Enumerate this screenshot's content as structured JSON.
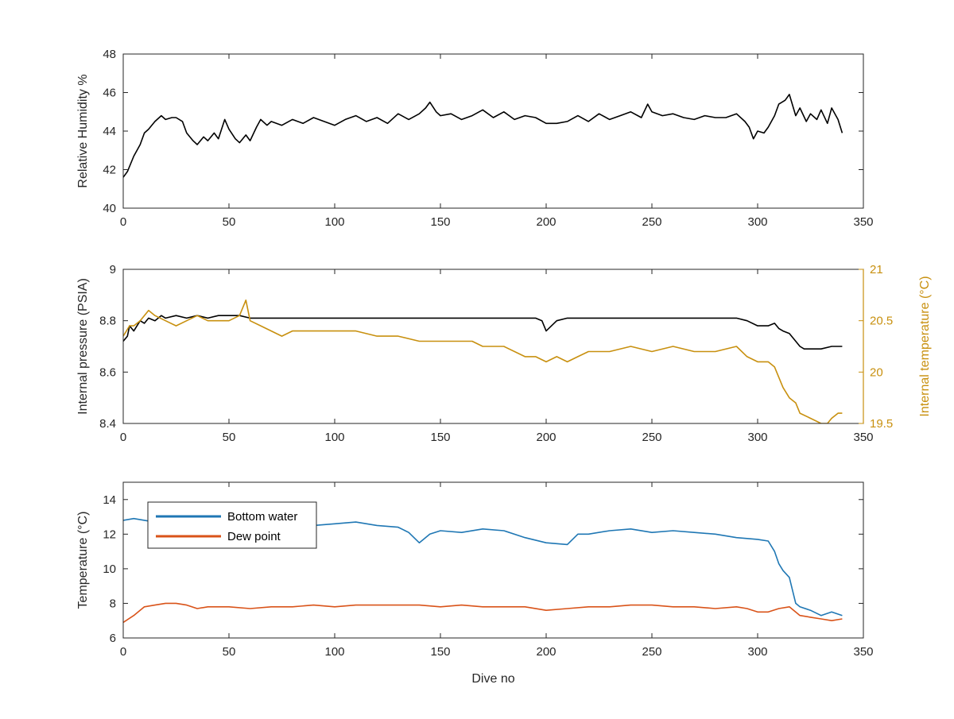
{
  "chart_data": [
    {
      "type": "line",
      "ylabel": "Relative Humidity %",
      "xlabel": "",
      "xlim": [
        0,
        350
      ],
      "ylim": [
        40,
        48
      ],
      "xticks": [
        0,
        50,
        100,
        150,
        200,
        250,
        300,
        350
      ],
      "yticks": [
        40,
        42,
        44,
        46,
        48
      ],
      "grid": false,
      "series": [
        {
          "color": "#000000",
          "x": [
            0,
            2,
            5,
            8,
            10,
            12,
            15,
            18,
            20,
            23,
            25,
            28,
            30,
            33,
            35,
            38,
            40,
            43,
            45,
            48,
            50,
            53,
            55,
            58,
            60,
            63,
            65,
            68,
            70,
            75,
            80,
            85,
            90,
            95,
            100,
            105,
            110,
            115,
            120,
            125,
            130,
            135,
            140,
            143,
            145,
            148,
            150,
            155,
            160,
            165,
            170,
            175,
            180,
            185,
            190,
            195,
            200,
            205,
            210,
            215,
            220,
            225,
            230,
            235,
            240,
            245,
            248,
            250,
            255,
            260,
            265,
            270,
            275,
            280,
            285,
            290,
            294,
            296,
            298,
            300,
            303,
            305,
            308,
            310,
            313,
            315,
            318,
            320,
            323,
            325,
            328,
            330,
            333,
            335,
            338,
            340
          ],
          "y": [
            41.6,
            41.9,
            42.7,
            43.3,
            43.9,
            44.1,
            44.5,
            44.8,
            44.6,
            44.7,
            44.7,
            44.5,
            43.9,
            43.5,
            43.3,
            43.7,
            43.5,
            43.9,
            43.6,
            44.6,
            44.1,
            43.6,
            43.4,
            43.8,
            43.5,
            44.2,
            44.6,
            44.3,
            44.5,
            44.3,
            44.6,
            44.4,
            44.7,
            44.5,
            44.3,
            44.6,
            44.8,
            44.5,
            44.7,
            44.4,
            44.9,
            44.6,
            44.9,
            45.2,
            45.5,
            45.0,
            44.8,
            44.9,
            44.6,
            44.8,
            45.1,
            44.7,
            45.0,
            44.6,
            44.8,
            44.7,
            44.4,
            44.4,
            44.5,
            44.8,
            44.5,
            44.9,
            44.6,
            44.8,
            45.0,
            44.7,
            45.4,
            45.0,
            44.8,
            44.9,
            44.7,
            44.6,
            44.8,
            44.7,
            44.7,
            44.9,
            44.5,
            44.2,
            43.6,
            44.0,
            43.9,
            44.2,
            44.8,
            45.4,
            45.6,
            45.9,
            44.8,
            45.2,
            44.5,
            44.9,
            44.6,
            45.1,
            44.4,
            45.2,
            44.6,
            43.9
          ]
        }
      ]
    },
    {
      "type": "line",
      "ylabel": "Internal pressure (PSIA)",
      "y2label": "Internal temperature (°C)",
      "xlabel": "",
      "xlim": [
        0,
        350
      ],
      "ylim": [
        8.4,
        9.0
      ],
      "y2lim": [
        19.5,
        21
      ],
      "xticks": [
        0,
        50,
        100,
        150,
        200,
        250,
        300,
        350
      ],
      "yticks": [
        8.4,
        8.6,
        8.8,
        9.0
      ],
      "ytick_labels": [
        "8.4",
        "8.6",
        "8.8",
        "9"
      ],
      "y2ticks": [
        19.5,
        20,
        20.5,
        21
      ],
      "y2tick_labels": [
        "19.5",
        "20",
        "20.5",
        "21"
      ],
      "grid": false,
      "series": [
        {
          "axis": "left",
          "color": "#000000",
          "x": [
            0,
            2,
            3,
            5,
            8,
            10,
            12,
            15,
            18,
            20,
            25,
            30,
            35,
            40,
            45,
            50,
            55,
            60,
            70,
            80,
            90,
            100,
            110,
            120,
            130,
            140,
            150,
            160,
            170,
            180,
            190,
            195,
            198,
            200,
            205,
            210,
            215,
            220,
            230,
            240,
            250,
            260,
            270,
            280,
            290,
            295,
            300,
            305,
            308,
            310,
            312,
            315,
            318,
            320,
            322,
            325,
            330,
            335,
            340
          ],
          "y": [
            8.72,
            8.74,
            8.78,
            8.76,
            8.8,
            8.79,
            8.81,
            8.8,
            8.82,
            8.81,
            8.82,
            8.81,
            8.82,
            8.81,
            8.82,
            8.82,
            8.82,
            8.81,
            8.81,
            8.81,
            8.81,
            8.81,
            8.81,
            8.81,
            8.81,
            8.81,
            8.81,
            8.81,
            8.81,
            8.81,
            8.81,
            8.81,
            8.8,
            8.76,
            8.8,
            8.81,
            8.81,
            8.81,
            8.81,
            8.81,
            8.81,
            8.81,
            8.81,
            8.81,
            8.81,
            8.8,
            8.78,
            8.78,
            8.79,
            8.77,
            8.76,
            8.75,
            8.72,
            8.7,
            8.69,
            8.69,
            8.69,
            8.7,
            8.7
          ]
        },
        {
          "axis": "right",
          "color": "#c8900f",
          "x": [
            0,
            3,
            5,
            8,
            10,
            12,
            15,
            20,
            25,
            30,
            35,
            40,
            45,
            50,
            55,
            58,
            60,
            65,
            70,
            75,
            80,
            90,
            100,
            110,
            120,
            130,
            140,
            150,
            160,
            165,
            170,
            180,
            190,
            195,
            200,
            205,
            210,
            215,
            220,
            230,
            240,
            250,
            260,
            270,
            280,
            290,
            295,
            300,
            305,
            308,
            310,
            312,
            315,
            318,
            320,
            325,
            330,
            333,
            335,
            338,
            340
          ],
          "y": [
            20.35,
            20.45,
            20.45,
            20.5,
            20.55,
            20.6,
            20.55,
            20.5,
            20.45,
            20.5,
            20.55,
            20.5,
            20.5,
            20.5,
            20.55,
            20.7,
            20.5,
            20.45,
            20.4,
            20.35,
            20.4,
            20.4,
            20.4,
            20.4,
            20.35,
            20.35,
            20.3,
            20.3,
            20.3,
            20.3,
            20.25,
            20.25,
            20.15,
            20.15,
            20.1,
            20.15,
            20.1,
            20.15,
            20.2,
            20.2,
            20.25,
            20.2,
            20.25,
            20.2,
            20.2,
            20.25,
            20.15,
            20.1,
            20.1,
            20.05,
            19.95,
            19.85,
            19.75,
            19.7,
            19.6,
            19.55,
            19.5,
            19.5,
            19.55,
            19.6,
            19.6
          ]
        }
      ]
    },
    {
      "type": "line",
      "ylabel": "Temperature (°C)",
      "xlabel": "Dive no",
      "xlim": [
        0,
        350
      ],
      "ylim": [
        6,
        15
      ],
      "xticks": [
        0,
        50,
        100,
        150,
        200,
        250,
        300,
        350
      ],
      "yticks": [
        6,
        8,
        10,
        12,
        14
      ],
      "grid": false,
      "legend": "top-left",
      "series": [
        {
          "name": "Bottom water",
          "color": "#1f77b4",
          "x": [
            0,
            5,
            10,
            20,
            30,
            40,
            50,
            60,
            70,
            80,
            90,
            100,
            110,
            120,
            130,
            135,
            140,
            145,
            150,
            160,
            170,
            180,
            190,
            200,
            210,
            215,
            220,
            230,
            240,
            250,
            260,
            270,
            280,
            290,
            300,
            305,
            308,
            310,
            312,
            315,
            318,
            320,
            325,
            330,
            335,
            340
          ],
          "y": [
            12.8,
            12.9,
            12.8,
            12.6,
            12.7,
            12.5,
            12.6,
            12.4,
            12.5,
            12.4,
            12.5,
            12.6,
            12.7,
            12.5,
            12.4,
            12.1,
            11.5,
            12.0,
            12.2,
            12.1,
            12.3,
            12.2,
            11.8,
            11.5,
            11.4,
            12.0,
            12.0,
            12.2,
            12.3,
            12.1,
            12.2,
            12.1,
            12.0,
            11.8,
            11.7,
            11.6,
            11.0,
            10.3,
            9.9,
            9.5,
            8.0,
            7.8,
            7.6,
            7.3,
            7.5,
            7.3
          ]
        },
        {
          "name": "Dew point",
          "color": "#d95319",
          "x": [
            0,
            5,
            10,
            15,
            20,
            25,
            30,
            35,
            40,
            50,
            60,
            70,
            80,
            90,
            100,
            110,
            120,
            130,
            140,
            150,
            160,
            170,
            180,
            190,
            200,
            210,
            220,
            230,
            240,
            250,
            260,
            270,
            280,
            290,
            295,
            300,
            305,
            310,
            315,
            320,
            325,
            330,
            335,
            340
          ],
          "y": [
            6.9,
            7.3,
            7.8,
            7.9,
            8.0,
            8.0,
            7.9,
            7.7,
            7.8,
            7.8,
            7.7,
            7.8,
            7.8,
            7.9,
            7.8,
            7.9,
            7.9,
            7.9,
            7.9,
            7.8,
            7.9,
            7.8,
            7.8,
            7.8,
            7.6,
            7.7,
            7.8,
            7.8,
            7.9,
            7.9,
            7.8,
            7.8,
            7.7,
            7.8,
            7.7,
            7.5,
            7.5,
            7.7,
            7.8,
            7.3,
            7.2,
            7.1,
            7.0,
            7.1
          ]
        }
      ]
    }
  ]
}
